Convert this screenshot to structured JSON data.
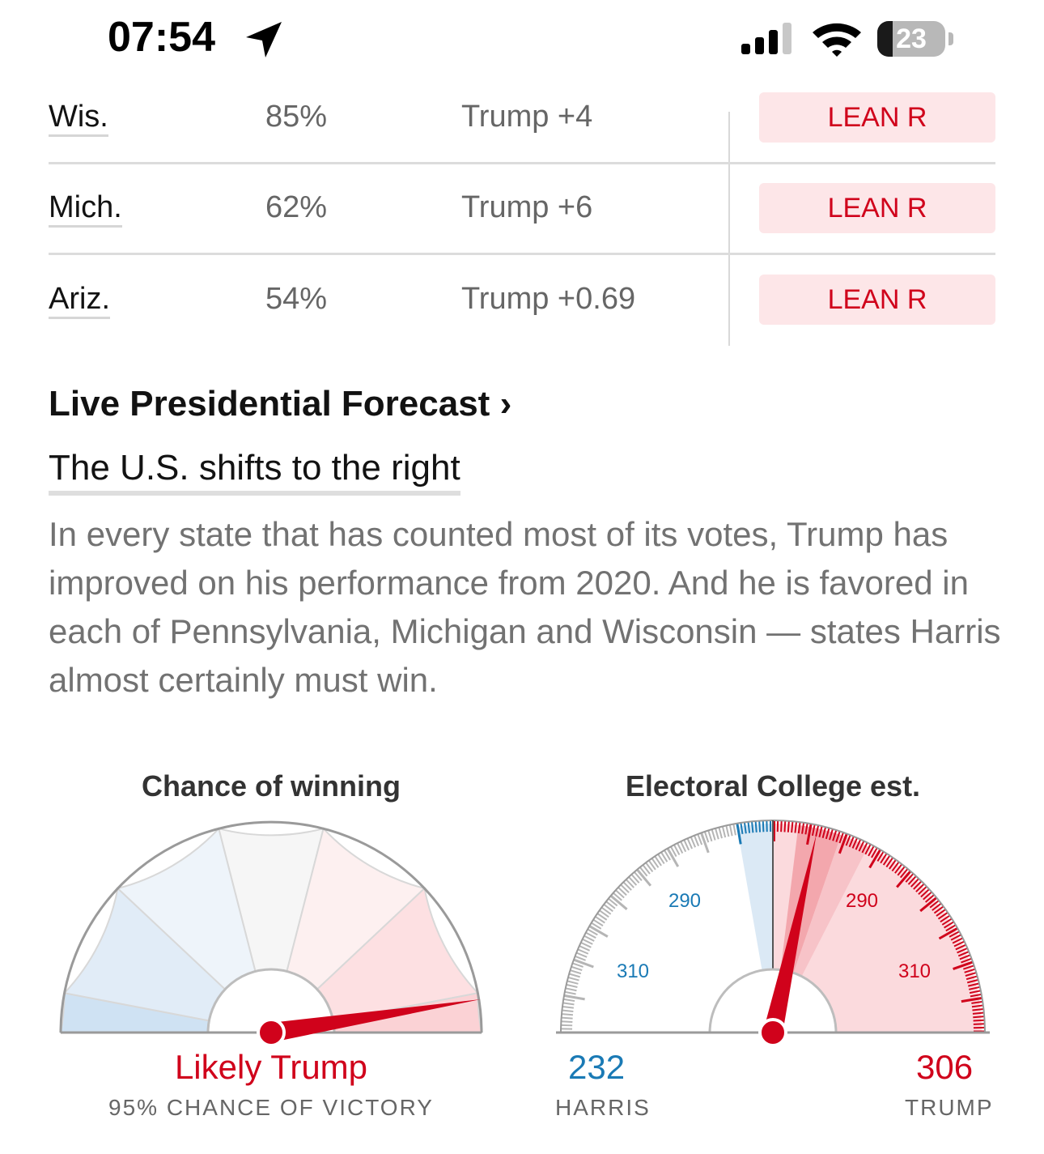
{
  "status_bar": {
    "time": "07:54",
    "battery": "23",
    "icons": [
      "location-arrow-icon",
      "cellular-signal-icon",
      "wifi-icon",
      "battery-icon"
    ]
  },
  "table": {
    "rows": [
      {
        "state": "Wis.",
        "chance": "85%",
        "margin": "Trump +4",
        "rating": "LEAN R"
      },
      {
        "state": "Mich.",
        "chance": "62%",
        "margin": "Trump +6",
        "rating": "LEAN R"
      },
      {
        "state": "Ariz.",
        "chance": "54%",
        "margin": "Trump +0.69",
        "rating": "LEAN R"
      }
    ]
  },
  "forecast": {
    "section_title": "Live Presidential Forecast ›",
    "headline": "The U.S. shifts to the right",
    "summary": "In every state that has counted most of its votes, Trump has improved on his performance from 2020. And he is favored in each of Pennsylvania, Michigan and Wisconsin — states Harris almost certainly must win."
  },
  "chance_gauge": {
    "title": "Chance of winning",
    "verdict": "Likely Trump",
    "subtitle": "95% CHANCE OF VICTORY",
    "trump_probability": 0.95
  },
  "electoral_gauge": {
    "title": "Electoral College est.",
    "harris_votes": "232",
    "harris_label": "HARRIS",
    "trump_votes": "306",
    "trump_label": "TRUMP",
    "tick_labels": {
      "harris_290": "290",
      "harris_310": "310",
      "trump_290": "290",
      "trump_310": "310"
    }
  },
  "colors": {
    "rep_red": "#d0021b",
    "dem_blue": "#1a7ab5",
    "badge_bg": "#fde6e8"
  }
}
